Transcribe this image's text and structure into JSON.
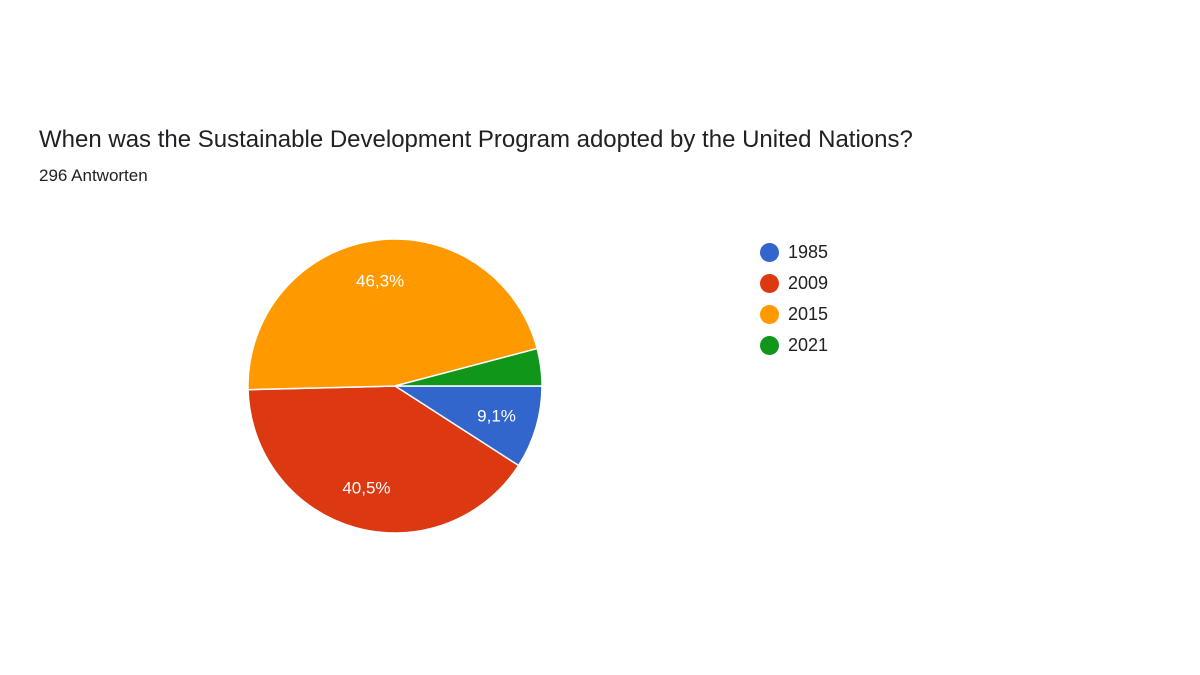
{
  "question": {
    "title": "When was the Sustainable Development Program adopted by the United Nations?",
    "response_count": "296 Antworten"
  },
  "chart_data": {
    "type": "pie",
    "categories": [
      "1985",
      "2009",
      "2015",
      "2021"
    ],
    "values": [
      9.1,
      40.5,
      46.3,
      4.1
    ],
    "value_labels": [
      "9,1%",
      "40,5%",
      "46,3%",
      ""
    ],
    "colors": [
      "#3366cc",
      "#dc3912",
      "#ff9900",
      "#109618"
    ],
    "legend_position": "right",
    "start_angle_deg": 90,
    "direction": "clockwise"
  }
}
